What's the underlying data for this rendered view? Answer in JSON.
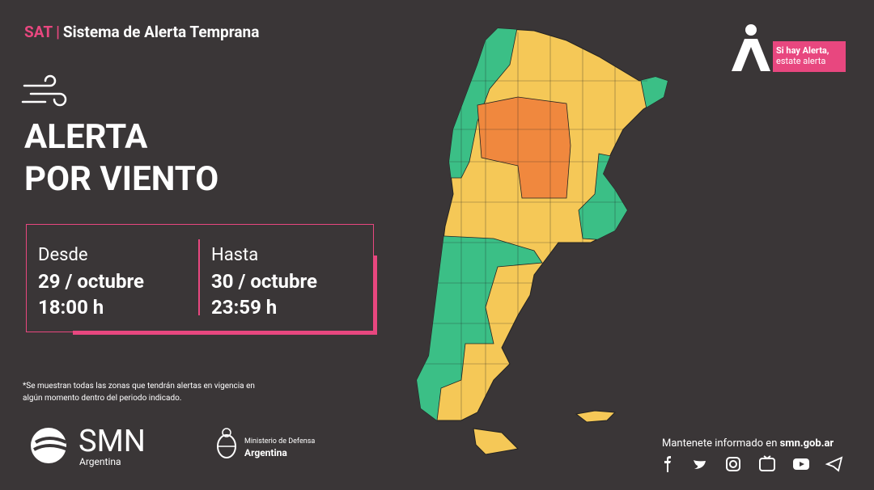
{
  "header": {
    "acronym": "SAT",
    "title": "Sistema de Alerta Temprana"
  },
  "alert": {
    "line1": "ALERTA",
    "line2": "POR VIENTO"
  },
  "period": {
    "from": {
      "label": "Desde",
      "date": "29 / octubre",
      "time": "18:00 h"
    },
    "to": {
      "label": "Hasta",
      "date": "30 / octubre",
      "time": "23:59 h"
    }
  },
  "footnote": "*Se muestran todas las zonas que tendrán alertas en vigencia en algún momento dentro del periodo indicado.",
  "badge": {
    "line1": "Si hay Alerta,",
    "line2": "estate alerta"
  },
  "logos": {
    "smn": "SMN",
    "smn_country": "Argentina",
    "ministry": "Ministerio de Defensa",
    "ministry_country": "Argentina"
  },
  "footer": {
    "text": "Mantenete informado en",
    "site": "smn.gob.ar"
  }
}
